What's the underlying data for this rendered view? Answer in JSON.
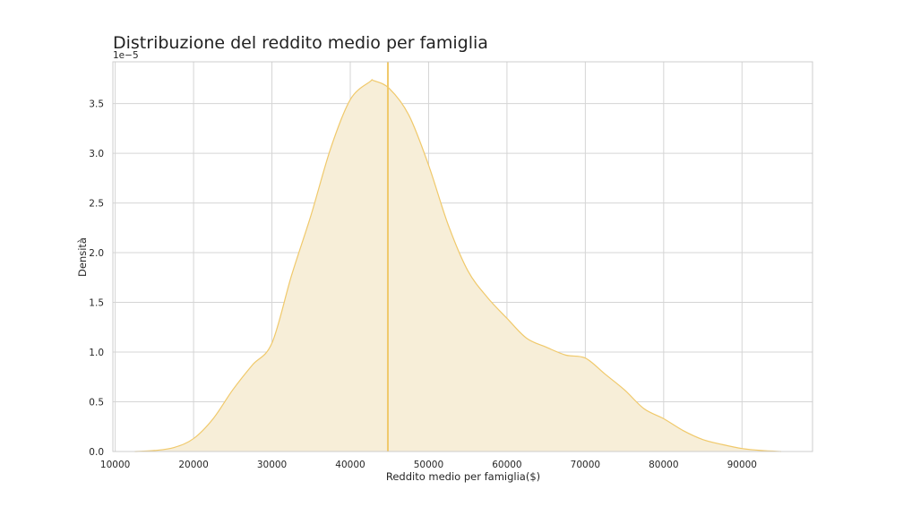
{
  "chart_data": {
    "type": "area",
    "title": "Distribuzione del reddito medio per famiglia",
    "xlabel": "Reddito medio per famiglia($)",
    "ylabel": "Densità",
    "y_offset_label": "1e−5",
    "y_scale_factor": 1e-05,
    "xlim": [
      9700,
      99000
    ],
    "ylim": [
      0,
      3.92
    ],
    "x_ticks": [
      10000,
      20000,
      30000,
      40000,
      50000,
      60000,
      70000,
      80000,
      90000
    ],
    "y_ticks": [
      0.0,
      0.5,
      1.0,
      1.5,
      2.0,
      2.5,
      3.0,
      3.5
    ],
    "y_tick_labels": [
      "0.0",
      "0.5",
      "1.0",
      "1.5",
      "2.0",
      "2.5",
      "3.0",
      "3.5"
    ],
    "grid": true,
    "fill_color": "#f7eed8",
    "line_color": "#f0c96b",
    "vline_color": "#f0c96b",
    "vline_x": 44800,
    "series": [
      {
        "x": [
          12500,
          15000,
          17500,
          20000,
          22500,
          25000,
          27500,
          30000,
          32500,
          35000,
          37500,
          40000,
          42500,
          43000,
          45000,
          47500,
          50000,
          52500,
          55000,
          57500,
          60000,
          62500,
          65000,
          67500,
          70000,
          72500,
          75000,
          77500,
          80000,
          82500,
          85000,
          87500,
          90000,
          92500,
          95000
        ],
        "y": [
          0.0,
          0.01,
          0.04,
          0.13,
          0.33,
          0.62,
          0.87,
          1.09,
          1.77,
          2.38,
          3.05,
          3.54,
          3.72,
          3.73,
          3.65,
          3.38,
          2.88,
          2.28,
          1.82,
          1.55,
          1.34,
          1.14,
          1.05,
          0.97,
          0.94,
          0.78,
          0.62,
          0.43,
          0.33,
          0.21,
          0.12,
          0.07,
          0.03,
          0.01,
          0.0
        ]
      }
    ]
  }
}
